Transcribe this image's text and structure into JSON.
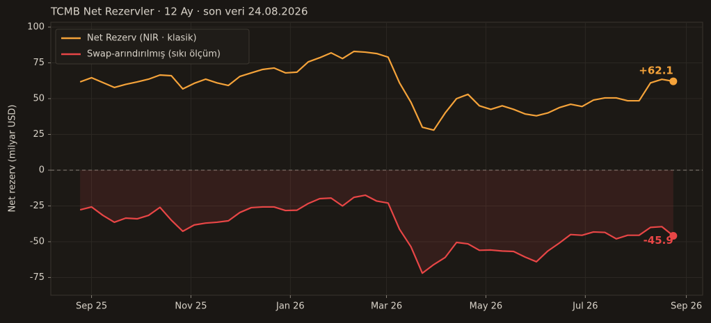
{
  "chart_data": {
    "type": "line",
    "title": "TCMB Net Rezervler · 12 Ay · son veri 24.08.2026",
    "y_label": "Net rezerv (milyar USD)",
    "x": [
      "2025-08-25",
      "2025-09-01",
      "2025-09-08",
      "2025-09-15",
      "2025-09-22",
      "2025-09-29",
      "2025-10-06",
      "2025-10-13",
      "2025-10-20",
      "2025-10-27",
      "2025-11-03",
      "2025-11-10",
      "2025-11-17",
      "2025-11-24",
      "2025-12-01",
      "2025-12-08",
      "2025-12-15",
      "2025-12-22",
      "2025-12-29",
      "2026-01-05",
      "2026-01-12",
      "2026-01-19",
      "2026-01-26",
      "2026-02-02",
      "2026-02-09",
      "2026-02-16",
      "2026-02-23",
      "2026-03-02",
      "2026-03-09",
      "2026-03-16",
      "2026-03-23",
      "2026-03-30",
      "2026-04-06",
      "2026-04-13",
      "2026-04-20",
      "2026-04-27",
      "2026-05-04",
      "2026-05-11",
      "2026-05-18",
      "2026-05-25",
      "2026-06-01",
      "2026-06-08",
      "2026-06-15",
      "2026-06-22",
      "2026-06-29",
      "2026-07-06",
      "2026-07-13",
      "2026-07-20",
      "2026-07-27",
      "2026-08-03",
      "2026-08-10",
      "2026-08-17",
      "2026-08-24"
    ],
    "series": [
      {
        "name": "Net Rezerv (NIR · klasik)",
        "color": "#f5a33a",
        "values": [
          61.7,
          64.6,
          61.2,
          57.8,
          60,
          61.7,
          63.6,
          66.5,
          66,
          56.8,
          60.7,
          63.6,
          61,
          59.2,
          65.5,
          68,
          70.4,
          71.4,
          68,
          68.5,
          75.7,
          78.6,
          82,
          78,
          83,
          82.5,
          81.5,
          79,
          61,
          47.5,
          30,
          28,
          40,
          50,
          53,
          45,
          42.5,
          45,
          42.5,
          39.3,
          38,
          40,
          43.7,
          46.1,
          44.5,
          49,
          50.5,
          50.5,
          48.5,
          48.5,
          61,
          63.5,
          62.1
        ],
        "value_labels": [
          null,
          null,
          null,
          null,
          null,
          null,
          null,
          null,
          null,
          null,
          null,
          null,
          null,
          null,
          null,
          null,
          null,
          null,
          null,
          null,
          null,
          null,
          null,
          null,
          null,
          null,
          null,
          null,
          null,
          null,
          null,
          null,
          null,
          null,
          null,
          null,
          null,
          null,
          null,
          null,
          null,
          null,
          null,
          null,
          null,
          null,
          null,
          null,
          null,
          null,
          null,
          null,
          "+62.1"
        ]
      },
      {
        "name": "Swap-arındırılmış (sıkı ölçüm)",
        "color": "#e84646",
        "values": [
          -27.7,
          -25.7,
          -31.6,
          -36.4,
          -33.5,
          -34,
          -31.6,
          -26,
          -35,
          -42.7,
          -38.3,
          -37,
          -36.4,
          -35.4,
          -29.6,
          -26.2,
          -25.7,
          -25.7,
          -28.2,
          -28,
          -23.3,
          -19.9,
          -19.5,
          -25,
          -19,
          -17.5,
          -21.6,
          -23,
          -41.3,
          -53.5,
          -72,
          -66,
          -61,
          -50.5,
          -51.5,
          -56,
          -55.8,
          -56.5,
          -56.8,
          -60.7,
          -64,
          -56.5,
          -51,
          -45,
          -45.5,
          -43.2,
          -43.5,
          -48,
          -45.5,
          -45.5,
          -40,
          -39.5,
          -45.9
        ]
      }
    ],
    "xlim": [
      "2025-08-07",
      "2026-09-11"
    ],
    "xticks": [
      {
        "value": "2025-09-01",
        "label": "Sep 25"
      },
      {
        "value": "2025-11-01",
        "label": "Nov 25"
      },
      {
        "value": "2026-01-01",
        "label": "Jan 26"
      },
      {
        "value": "2026-03-01",
        "label": "Mar 26"
      },
      {
        "value": "2026-05-01",
        "label": "May 26"
      },
      {
        "value": "2026-07-01",
        "label": "Jul 26"
      },
      {
        "value": "2026-09-01",
        "label": "Sep 26"
      }
    ],
    "ylim": [
      -87.4,
      103.4
    ],
    "yticks": [
      -75,
      -50,
      -25,
      0,
      25,
      50,
      75,
      100
    ],
    "grid": true,
    "legend": "upper left"
  }
}
